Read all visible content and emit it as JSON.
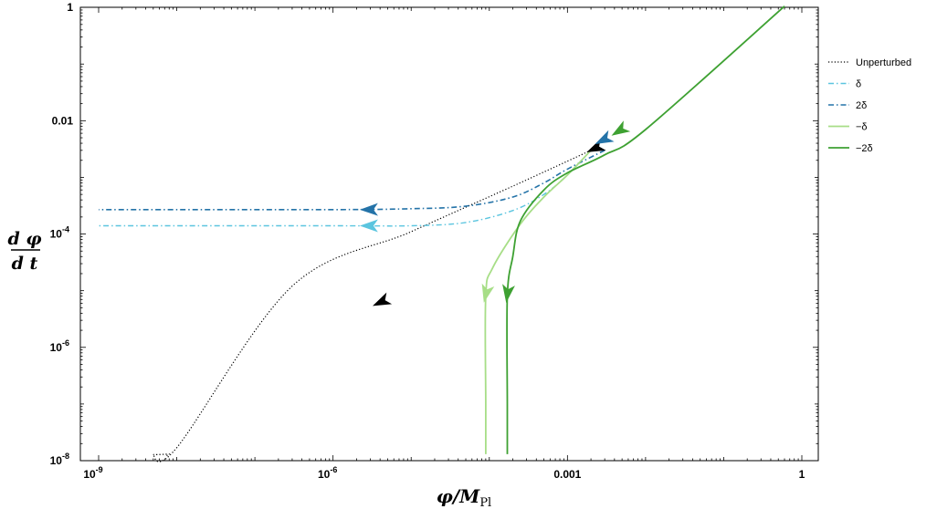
{
  "chart_data": {
    "type": "line",
    "title": "",
    "xlabel_main": "φ/M",
    "xlabel_sub": "Pl",
    "ylabel_num": "d φ",
    "ylabel_den": "d t",
    "x_scale": "log",
    "y_scale": "log",
    "xlim": [
      1e-09,
      1
    ],
    "ylim": [
      1e-08,
      10
    ],
    "grid": false,
    "legend_position": "right",
    "x_ticks": [
      {
        "base": "10",
        "exp": "-9",
        "value": 1e-09
      },
      {
        "base": "10",
        "exp": "-6",
        "value": 1e-06
      },
      {
        "base": "0.001",
        "exp": "",
        "value": 0.001
      },
      {
        "base": "1",
        "exp": "",
        "value": 1
      }
    ],
    "y_ticks": [
      {
        "base": "1",
        "exp": "",
        "value": 1
      },
      {
        "base": "0.01",
        "exp": "",
        "value": 0.01
      },
      {
        "base": "10",
        "exp": "-4",
        "value": 0.0001
      },
      {
        "base": "10",
        "exp": "-6",
        "value": 1e-06
      },
      {
        "base": "10",
        "exp": "-8",
        "value": 1e-08
      }
    ],
    "series": [
      {
        "name": "Unperturbed",
        "color": "#000000",
        "dash": "dotted",
        "width": 1.2,
        "x": [
          0.002,
          0.0002,
          1e-05,
          3e-07,
          1e-08,
          5e-09,
          8e-09,
          7e-09
        ],
        "y": [
          0.003,
          0.0007,
          0.00011,
          1.2e-05,
          1.7e-08,
          1.3e-08,
          1.3e-08,
          1.2e-08
        ],
        "arrows": [
          {
            "x": 0.0022,
            "y": 0.0032
          },
          {
            "x": 4e-06,
            "y": 6.2e-06
          }
        ]
      },
      {
        "name": "δ",
        "color": "#5bc5df",
        "dash": "dashdot",
        "width": 1.4,
        "x": [
          0.002,
          0.001,
          0.0005,
          0.0002,
          5e-05,
          1e-05,
          1e-06,
          1e-09
        ],
        "y": [
          0.003,
          0.0011,
          0.0005,
          0.00026,
          0.00016,
          0.00014,
          0.00014,
          0.00014
        ],
        "arrows": [
          {
            "x": 2.8e-06,
            "y": 0.00014
          }
        ]
      },
      {
        "name": "2δ",
        "color": "#2473a8",
        "dash": "dashdot",
        "width": 1.6,
        "x": [
          0.003,
          0.001,
          0.0005,
          0.0002,
          5e-05,
          1e-05,
          1e-06,
          1e-09
        ],
        "y": [
          0.003,
          0.0014,
          0.0008,
          0.00045,
          0.00031,
          0.00028,
          0.00027,
          0.00027
        ],
        "arrows": [
          {
            "x": 0.0028,
            "y": 0.0045
          },
          {
            "x": 2.8e-06,
            "y": 0.00027
          }
        ]
      },
      {
        "name": "−δ",
        "color": "#a7de87",
        "dash": "solid",
        "width": 1.8,
        "x": [
          0.002,
          0.001,
          0.0005,
          0.00025,
          0.00011,
          9e-05,
          9e-05,
          9e-05
        ],
        "y": [
          0.003,
          0.0011,
          0.00045,
          0.00015,
          2.5e-05,
          8e-06,
          1e-07,
          1.3e-08
        ],
        "arrows": [
          {
            "x": 9e-05,
            "y": 8.5e-06
          }
        ]
      },
      {
        "name": "−2δ",
        "color": "#3ea132",
        "dash": "solid",
        "width": 1.8,
        "x": [
          0.6,
          0.01,
          0.003,
          0.001,
          0.0005,
          0.00025,
          0.0002,
          0.00017,
          0.00017,
          0.00017
        ],
        "y": [
          1.05,
          0.007,
          0.0025,
          0.0012,
          0.0006,
          0.00017,
          4e-05,
          8e-06,
          1e-07,
          1.3e-08
        ],
        "arrows": [
          {
            "x": 0.0045,
            "y": 0.0065
          },
          {
            "x": 0.00017,
            "y": 8.5e-06
          }
        ]
      }
    ]
  }
}
